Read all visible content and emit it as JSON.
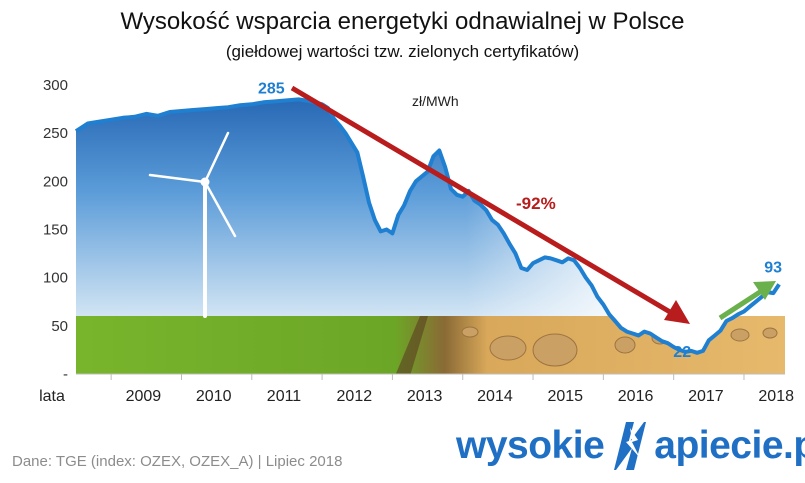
{
  "title": "Wysokość wsparcia energetyki odnawialnej w Polsce",
  "subtitle": "(giełdowej wartości tzw. zielonych certyfikatów)",
  "source": "Dane: TGE (index: OZEX, OZEX_A)   |   Lipiec 2018",
  "logo": {
    "left": "wysokie",
    "right": "apiecie.pl"
  },
  "colors": {
    "series": "#1f7fd1",
    "trend_arrow": "#b81c1c",
    "rise_arrow": "#6ab04c",
    "grid": "#d9d9d9"
  },
  "chart_data": {
    "type": "line",
    "ylim": [
      0,
      300
    ],
    "yticks": [
      "-",
      "50",
      "100",
      "150",
      "200",
      "250",
      "300"
    ],
    "xlabel": "lata",
    "xlim": [
      "2008-07",
      "2018-08"
    ],
    "xtick_labels": [
      "2009",
      "2010",
      "2011",
      "2012",
      "2013",
      "2014",
      "2015",
      "2016",
      "2017",
      "2018"
    ],
    "unit_label": "zł/MWh",
    "series": [
      {
        "name": "",
        "x": [
          "2008-07",
          "2008-09",
          "2008-11",
          "2009-01",
          "2009-03",
          "2009-05",
          "2009-07",
          "2009-09",
          "2009-11",
          "2010-01",
          "2010-03",
          "2010-05",
          "2010-07",
          "2010-09",
          "2010-11",
          "2011-01",
          "2011-03",
          "2011-05",
          "2011-07",
          "2011-09",
          "2011-11",
          "2012-01",
          "2012-02",
          "2012-03",
          "2012-04",
          "2012-05",
          "2012-06",
          "2012-07",
          "2012-08",
          "2012-09",
          "2012-10",
          "2012-11",
          "2012-12",
          "2013-01",
          "2013-02",
          "2013-03",
          "2013-04",
          "2013-05",
          "2013-06",
          "2013-07",
          "2013-08",
          "2013-09",
          "2013-10",
          "2013-11",
          "2013-12",
          "2014-01",
          "2014-02",
          "2014-03",
          "2014-04",
          "2014-05",
          "2014-06",
          "2014-07",
          "2014-08",
          "2014-09",
          "2014-10",
          "2014-11",
          "2014-12",
          "2015-01",
          "2015-02",
          "2015-03",
          "2015-04",
          "2015-05",
          "2015-06",
          "2015-07",
          "2015-08",
          "2015-09",
          "2015-10",
          "2015-11",
          "2015-12",
          "2016-01",
          "2016-02",
          "2016-03",
          "2016-04",
          "2016-05",
          "2016-06",
          "2016-07",
          "2016-08",
          "2016-09",
          "2016-10",
          "2016-11",
          "2016-12",
          "2017-01",
          "2017-02",
          "2017-03",
          "2017-04",
          "2017-05",
          "2017-06",
          "2017-07",
          "2017-08",
          "2017-09",
          "2017-10",
          "2017-11",
          "2017-12",
          "2018-01",
          "2018-02",
          "2018-03",
          "2018-04",
          "2018-05",
          "2018-06",
          "2018-07"
        ],
        "y": [
          252,
          260,
          262,
          264,
          266,
          267,
          270,
          268,
          272,
          273,
          274,
          275,
          276,
          277,
          279,
          280,
          282,
          283,
          284,
          285,
          283,
          280,
          276,
          265,
          258,
          250,
          240,
          230,
          205,
          178,
          160,
          148,
          150,
          146,
          165,
          175,
          190,
          200,
          205,
          210,
          226,
          232,
          215,
          192,
          186,
          184,
          190,
          180,
          176,
          170,
          160,
          155,
          146,
          135,
          125,
          110,
          108,
          115,
          118,
          121,
          120,
          118,
          116,
          120,
          118,
          110,
          100,
          92,
          80,
          72,
          62,
          55,
          48,
          44,
          42,
          40,
          44,
          42,
          38,
          34,
          32,
          28,
          25,
          23,
          24,
          22,
          24,
          35,
          40,
          45,
          55,
          58,
          62,
          65,
          70,
          75,
          80,
          85,
          84,
          93
        ]
      }
    ],
    "annotations": [
      {
        "text": "285",
        "x": "2011-09",
        "y": 285
      },
      {
        "text": "-92%"
      },
      {
        "text": "22",
        "x": "2017-05",
        "y": 22
      },
      {
        "text": "93",
        "x": "2018-07",
        "y": 93
      }
    ]
  }
}
